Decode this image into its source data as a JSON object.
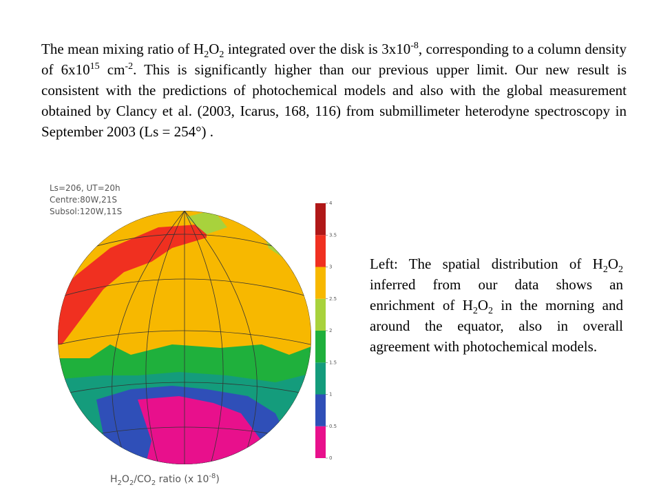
{
  "paragraph1": [
    "The mean mixing ratio of H",
    "2",
    "O",
    "2",
    " integrated over the disk is 3x10",
    "-8",
    ", corresponding to a column density of  6x10",
    "15",
    " cm",
    "-2",
    ".  This is significantly higher than our previous upper limit.  Our new result is consistent with the predictions of photochemical models and also with the global measurement obtained by Clancy et al. (2003, Icarus, 168, 116) from submillimeter heterodyne spectroscopy in September 2003 (Ls = 254°) ."
  ],
  "figure": {
    "info": [
      "Ls=206, UT=20h",
      "Centre:80W,21S",
      "Subsol:120W,11S"
    ],
    "colorbar": {
      "ticks": [
        0,
        0.5,
        1,
        1.5,
        2,
        2.5,
        3,
        3.5,
        4
      ],
      "colors": [
        "#e8108c",
        "#2f4fb8",
        "#149c7c",
        "#1fb03c",
        "#a8d23c",
        "#f7b800",
        "#f03020",
        "#b01818"
      ]
    },
    "caption": [
      "H",
      "2",
      "O",
      "2",
      "/CO",
      "2",
      " ratio (x 10",
      "-8",
      ")"
    ]
  },
  "paragraph2": [
    "Left:  The spatial distribution of H",
    "2",
    "O",
    "2",
    " inferred from our data shows an enrichment of H",
    "2",
    "O",
    "2",
    " in the morning and around the equator, also in overall agreement with photochemical models."
  ]
}
